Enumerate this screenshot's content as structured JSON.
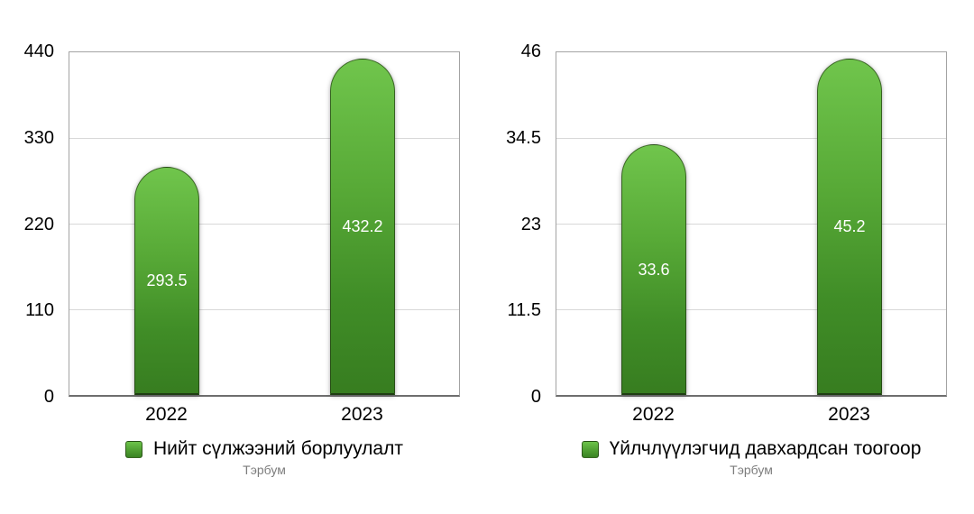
{
  "colors": {
    "bar_gradient_top": "#70c54c",
    "bar_gradient_bottom": "#377d20",
    "bar_outline": "#1e3410",
    "value_label_text": "#ffffff",
    "axis_text": "#000000",
    "unit_text": "#7d7d7d",
    "gridline": "#d8d8d8",
    "plot_border": "#a3a3a3",
    "baseline": "#6e6e6e",
    "background": "#ffffff"
  },
  "chart_data": [
    {
      "type": "bar",
      "title": "",
      "categories": [
        "2022",
        "2023"
      ],
      "values": [
        293.5,
        432.2
      ],
      "data_labels": [
        "293.5",
        "432.2"
      ],
      "legend": "Нийт сүлжээний борлуулалт",
      "unit_note": "Тэрбум",
      "ylim": [
        0,
        440
      ],
      "y_ticks": [
        0,
        110,
        220,
        330,
        440
      ],
      "y_tick_labels": [
        "440",
        "330",
        "220",
        "110",
        "0"
      ],
      "grid": true,
      "legend_position": "bottom"
    },
    {
      "type": "bar",
      "title": "",
      "categories": [
        "2022",
        "2023"
      ],
      "values": [
        33.6,
        45.2
      ],
      "data_labels": [
        "33.6",
        "45.2"
      ],
      "legend": "Үйлчлүүлэгчид давхардсан тоогоор",
      "unit_note": "Тэрбум",
      "ylim": [
        0,
        46
      ],
      "y_ticks": [
        0,
        11.5,
        23,
        34.5,
        46
      ],
      "y_tick_labels": [
        "46",
        "34.5",
        "23",
        "11.5",
        "0"
      ],
      "grid": true,
      "legend_position": "bottom"
    }
  ]
}
